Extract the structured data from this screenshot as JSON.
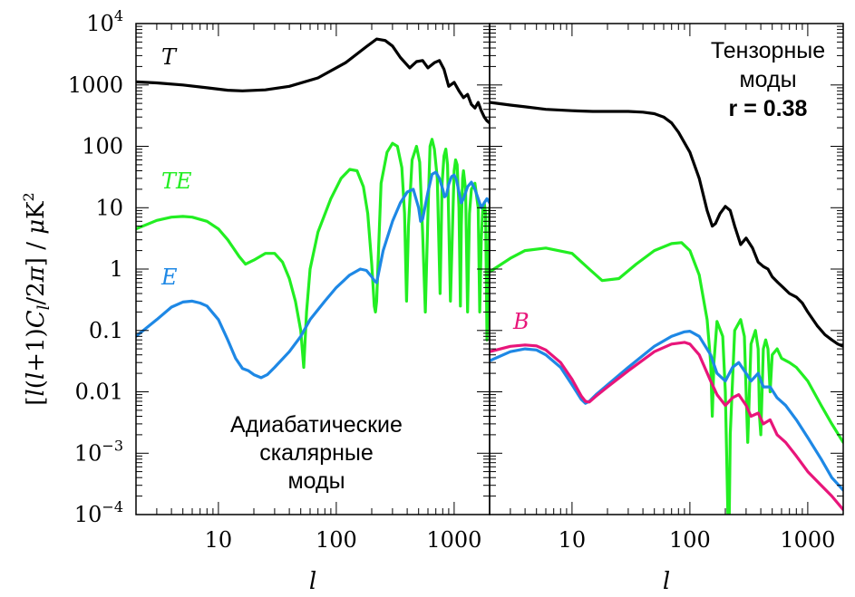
{
  "figure": {
    "ylabel_parts": [
      "[",
      "l",
      "(",
      "l",
      "+1)",
      "C",
      "l",
      "/2",
      "π",
      "]  /  ",
      "μ",
      "K",
      "2"
    ],
    "xlabel": "l"
  },
  "colors": {
    "T": "#000000",
    "TE": "#22ee22",
    "E": "#1e88e5",
    "B": "#e8157a",
    "axes": "#000000"
  },
  "chart_data": [
    {
      "type": "line",
      "panel": "left",
      "annotation": "Адиабатические скалярные моды",
      "annotation_lines": [
        "Адиабатические",
        "скалярные",
        "моды"
      ],
      "xscale": "log",
      "yscale": "log",
      "xlim": [
        2,
        2000
      ],
      "ylim": [
        0.0001,
        10000
      ],
      "x_ticks": [
        10,
        100,
        1000
      ],
      "x_tick_labels": [
        "10",
        "100",
        "1000"
      ],
      "y_ticks": [
        0.0001,
        0.001,
        0.01,
        0.1,
        1,
        10,
        100,
        1000,
        10000
      ],
      "y_tick_labels": [
        {
          "base": "10",
          "exp": "−4"
        },
        {
          "base": "10",
          "exp": "−3"
        },
        {
          "text": "0.01"
        },
        {
          "text": "0.1"
        },
        {
          "text": "1"
        },
        {
          "text": "10"
        },
        {
          "text": "100"
        },
        {
          "text": "1000"
        },
        {
          "base": "10",
          "exp": "4"
        }
      ],
      "series": [
        {
          "name": "T",
          "color": "#000000",
          "x": [
            2,
            3,
            5,
            8,
            12,
            16,
            25,
            40,
            70,
            120,
            180,
            220,
            260,
            300,
            350,
            420,
            480,
            540,
            600,
            680,
            750,
            820,
            900,
            1000,
            1100,
            1200,
            1300,
            1400,
            1500,
            1600,
            1700,
            1800,
            1900,
            2000
          ],
          "y": [
            1120,
            1080,
            1000,
            900,
            820,
            800,
            830,
            950,
            1300,
            2300,
            4200,
            5600,
            5300,
            4300,
            2800,
            1900,
            2400,
            2500,
            1900,
            2300,
            2500,
            1800,
            950,
            1100,
            800,
            620,
            700,
            480,
            420,
            520,
            380,
            300,
            260,
            240
          ]
        },
        {
          "name": "TE",
          "color": "#22ee22",
          "x": [
            2,
            3,
            4,
            5,
            6,
            8,
            10,
            12,
            15,
            17,
            20,
            25,
            30,
            35,
            40,
            45,
            50,
            53,
            56,
            60,
            70,
            90,
            110,
            130,
            150,
            170,
            185,
            200,
            210,
            215,
            220,
            240,
            270,
            300,
            330,
            360,
            380,
            395,
            410,
            440,
            480,
            510,
            540,
            570,
            600,
            625,
            650,
            680,
            720,
            760,
            790,
            820,
            850,
            880,
            930,
            980,
            1000,
            1030,
            1060,
            1100,
            1130,
            1150,
            1180,
            1200,
            1250,
            1300,
            1350,
            1400,
            1500,
            1600,
            1650,
            1700,
            1750,
            1800,
            1850,
            1900,
            2000
          ],
          "y": [
            4.5,
            6.2,
            7.0,
            7.2,
            7.0,
            6.0,
            4.5,
            3.0,
            1.6,
            1.2,
            1.4,
            1.8,
            1.8,
            1.3,
            0.7,
            0.3,
            0.1,
            0.025,
            0.2,
            1,
            4,
            14,
            30,
            42,
            40,
            22,
            8,
            1.2,
            0.25,
            0.2,
            0.3,
            25,
            80,
            112,
            100,
            45,
            8,
            0.3,
            5,
            60,
            100,
            55,
            4,
            0.2,
            8,
            100,
            130,
            90,
            30,
            0.4,
            25,
            70,
            90,
            50,
            0.3,
            10,
            40,
            60,
            50,
            10,
            0.25,
            5,
            30,
            40,
            20,
            0.2,
            8,
            20,
            25,
            10,
            0.2,
            3,
            10,
            12,
            8,
            0.07,
            10
          ]
        },
        {
          "name": "E",
          "color": "#1e88e5",
          "x": [
            2,
            3,
            4,
            5,
            6,
            7,
            8,
            10,
            12,
            14,
            16,
            18,
            20,
            23,
            26,
            30,
            40,
            50,
            60,
            80,
            100,
            130,
            160,
            180,
            200,
            210,
            220,
            250,
            300,
            350,
            400,
            450,
            500,
            520,
            540,
            600,
            650,
            700,
            750,
            800,
            830,
            860,
            900,
            950,
            1000,
            1050,
            1100,
            1150,
            1200,
            1300,
            1400,
            1500,
            1600,
            1700,
            1800,
            1900,
            2000
          ],
          "y": [
            0.08,
            0.15,
            0.24,
            0.29,
            0.3,
            0.28,
            0.25,
            0.15,
            0.07,
            0.035,
            0.024,
            0.022,
            0.019,
            0.017,
            0.019,
            0.025,
            0.045,
            0.08,
            0.15,
            0.3,
            0.5,
            0.8,
            1.0,
            0.95,
            0.75,
            0.65,
            0.6,
            2.0,
            6.0,
            12,
            18,
            20,
            10,
            6,
            6.5,
            18,
            35,
            38,
            30,
            20,
            15,
            16,
            24,
            32,
            34,
            28,
            18,
            12,
            14,
            22,
            26,
            20,
            14,
            10,
            12,
            14,
            12
          ]
        }
      ]
    },
    {
      "type": "line",
      "panel": "right",
      "annotation": "Тензорные моды r = 0.38",
      "annotation_lines": [
        "Тензорные",
        "моды",
        "r = 0.38"
      ],
      "xscale": "log",
      "yscale": "log",
      "xlim": [
        2,
        2000
      ],
      "ylim": [
        0.0001,
        10000
      ],
      "x_ticks": [
        10,
        100,
        1000
      ],
      "x_tick_labels": [
        "10",
        "100",
        "1000"
      ],
      "series": [
        {
          "name": "T",
          "color": "#000000",
          "x": [
            2,
            3,
            4,
            6,
            10,
            15,
            20,
            30,
            40,
            50,
            60,
            70,
            80,
            100,
            120,
            140,
            155,
            165,
            180,
            200,
            220,
            240,
            270,
            300,
            340,
            380,
            420,
            460,
            500,
            560,
            620,
            700,
            800,
            900,
            1000,
            1200,
            1400,
            1600,
            1800,
            2000
          ],
          "y": [
            520,
            470,
            440,
            400,
            380,
            370,
            370,
            370,
            360,
            340,
            300,
            240,
            170,
            80,
            30,
            9,
            5,
            5.5,
            8,
            10.5,
            9,
            5,
            2.5,
            3.2,
            2.2,
            1.3,
            1.1,
            1.0,
            0.75,
            0.6,
            0.5,
            0.4,
            0.35,
            0.28,
            0.2,
            0.12,
            0.085,
            0.07,
            0.06,
            0.055
          ]
        },
        {
          "name": "TE",
          "color": "#22ee22",
          "x": [
            2,
            3,
            4,
            6,
            10,
            14,
            18,
            25,
            35,
            50,
            70,
            85,
            100,
            120,
            140,
            150,
            155,
            160,
            170,
            190,
            200,
            210,
            215,
            220,
            240,
            270,
            290,
            300,
            310,
            330,
            360,
            380,
            390,
            400,
            420,
            440,
            460,
            480,
            500,
            550,
            600,
            700,
            800,
            1000,
            1300,
            1600,
            2000
          ],
          "y": [
            0.9,
            1.5,
            2.0,
            2.2,
            1.8,
            1.0,
            0.65,
            0.7,
            1.2,
            2.0,
            2.6,
            2.7,
            2.0,
            0.8,
            0.15,
            0.03,
            0.004,
            0.03,
            0.14,
            0.08,
            0.01,
            0.0001,
            5e-05,
            0.002,
            0.1,
            0.15,
            0.08,
            0.01,
            0.0015,
            0.06,
            0.1,
            0.05,
            0.004,
            0.002,
            0.05,
            0.07,
            0.05,
            0.01,
            0.04,
            0.05,
            0.035,
            0.03,
            0.025,
            0.015,
            0.006,
            0.003,
            0.0015
          ]
        },
        {
          "name": "E",
          "color": "#1e88e5",
          "x": [
            2,
            3,
            4,
            5,
            6,
            8,
            10,
            12,
            13,
            14,
            16,
            20,
            30,
            50,
            70,
            90,
            100,
            120,
            150,
            170,
            200,
            230,
            260,
            300,
            330,
            380,
            420,
            480,
            550,
            650,
            800,
            1000,
            1300,
            1600,
            2000
          ],
          "y": [
            0.032,
            0.045,
            0.05,
            0.048,
            0.04,
            0.025,
            0.013,
            0.0075,
            0.0065,
            0.007,
            0.009,
            0.013,
            0.025,
            0.055,
            0.08,
            0.095,
            0.097,
            0.08,
            0.04,
            0.02,
            0.015,
            0.025,
            0.03,
            0.02,
            0.015,
            0.02,
            0.012,
            0.012,
            0.008,
            0.006,
            0.0035,
            0.0018,
            0.0008,
            0.0004,
            0.00025
          ]
        },
        {
          "name": "B",
          "color": "#e8157a",
          "x": [
            2,
            3,
            4,
            5,
            6,
            8,
            10,
            12,
            13,
            14,
            16,
            20,
            30,
            50,
            70,
            90,
            100,
            120,
            150,
            170,
            200,
            230,
            260,
            300,
            330,
            380,
            420,
            480,
            550,
            650,
            800,
            1000,
            1300,
            1600,
            2000
          ],
          "y": [
            0.045,
            0.055,
            0.058,
            0.056,
            0.048,
            0.03,
            0.016,
            0.0085,
            0.007,
            0.0068,
            0.0085,
            0.012,
            0.022,
            0.045,
            0.06,
            0.064,
            0.06,
            0.04,
            0.015,
            0.009,
            0.006,
            0.008,
            0.009,
            0.006,
            0.004,
            0.0045,
            0.003,
            0.0035,
            0.002,
            0.0015,
            0.0009,
            0.0005,
            0.0003,
            0.0002,
            0.00012
          ]
        }
      ]
    }
  ]
}
